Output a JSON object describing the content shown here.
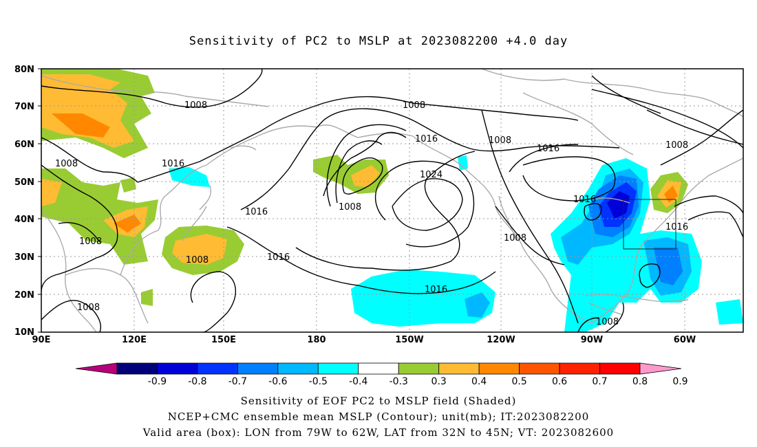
{
  "title": "Sensitivity of PC2 to MSLP at 2023082200 +4.0 day",
  "lat_labels": [
    "80N",
    "70N",
    "60N",
    "50N",
    "40N",
    "30N",
    "20N",
    "10N"
  ],
  "lon_labels": [
    "90E",
    "120E",
    "150E",
    "180",
    "150W",
    "120W",
    "90W",
    "60W"
  ],
  "contour_labels": [
    "1008",
    "1016",
    "1024"
  ],
  "colorbar": {
    "labels": [
      "-0.9",
      "-0.8",
      "-0.7",
      "-0.6",
      "-0.5",
      "-0.4",
      "-0.3",
      "0.3",
      "0.4",
      "0.5",
      "0.6",
      "0.7",
      "0.8",
      "0.9"
    ],
    "colors": [
      "#b8007a",
      "#00007a",
      "#0000d8",
      "#0033ff",
      "#0080ff",
      "#00b8ff",
      "#00ffff",
      "#ffffff",
      "#99cc33",
      "#ffbb33",
      "#ff8800",
      "#ff5500",
      "#ff2200",
      "#ff0000",
      "#ff99cc"
    ]
  },
  "caption": {
    "line1": "Sensitivity of EOF PC2 to MSLP field (Shaded)",
    "line2": "NCEP+CMC ensemble mean MSLP (Contour); unit(mb); IT:2023082200",
    "line3": "Valid area (box): LON from 79W to 62W, LAT from 32N to 45N; VT: 2023082600"
  }
}
